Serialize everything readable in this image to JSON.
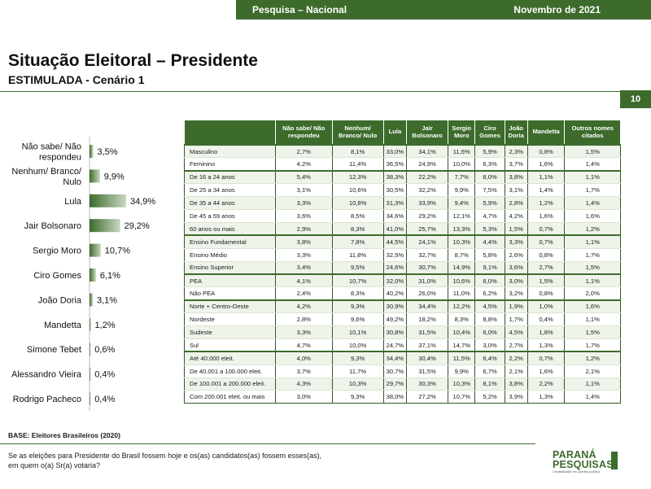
{
  "header": {
    "left": "Pesquisa – Nacional",
    "right": "Novembro de 2021"
  },
  "title": "Situação Eleitoral – Presidente",
  "subtitle": "ESTIMULADA - Cenário 1",
  "page_number": "10",
  "base": "BASE: Eleitores Brasileiros  (2020)",
  "question_line1": "Se as eleições para Presidente do Brasil fossem hoje e os(as) candidatos(as) fossem esses(as),",
  "question_line2": "em quem o(a) Sr(a) votaria?",
  "logo": {
    "line1": "PARANÁ",
    "line2": "PESQUISAS",
    "tagline": "Credibilidade em opinião pública"
  },
  "colors": {
    "brand_green": "#3d6b2c",
    "row_alt": "#eef4ea"
  },
  "chart_data": {
    "type": "bar",
    "orientation": "horizontal",
    "categories": [
      "Não sabe/ Não respondeu",
      "Nenhum/ Branco/ Nulo",
      "Lula",
      "Jair Bolsonaro",
      "Sergio Moro",
      "Ciro Gomes",
      "João Doria",
      "Mandetta",
      "Simone Tebet",
      "Alessandro Vieira",
      "Rodrigo Pacheco"
    ],
    "category_lines": [
      [
        "Não sabe/ Não",
        "respondeu"
      ],
      [
        "Nenhum/ Branco/",
        "Nulo"
      ],
      [
        "Lula"
      ],
      [
        "Jair Bolsonaro"
      ],
      [
        "Sergio Moro"
      ],
      [
        "Ciro Gomes"
      ],
      [
        "João Doria"
      ],
      [
        "Mandetta"
      ],
      [
        "Simone Tebet"
      ],
      [
        "Alessandro Vieira"
      ],
      [
        "Rodrigo Pacheco"
      ]
    ],
    "values": [
      3.5,
      9.9,
      34.9,
      29.2,
      10.7,
      6.1,
      3.1,
      1.2,
      0.6,
      0.4,
      0.4
    ],
    "labels": [
      "3,5%",
      "9,9%",
      "34,9%",
      "29,2%",
      "10,7%",
      "6,1%",
      "3,1%",
      "1,2%",
      "0,6%",
      "0,4%",
      "0,4%"
    ],
    "xlim": [
      0,
      34.9
    ],
    "grid": false,
    "legend": "none"
  },
  "table": {
    "columns": [
      "Não sabe/ Não respondeu",
      "Nenhum/ Branco/ Nulo",
      "Lula",
      "Jair Bolsonaro",
      "Sergio Moro",
      "Ciro Gomes",
      "João Doria",
      "Mandetta",
      "Outros nomes citados"
    ],
    "column_lines": [
      [
        "Não sabe/ Não",
        "respondeu"
      ],
      [
        "Nenhum/",
        "Branco/ Nulo"
      ],
      [
        "Lula"
      ],
      [
        "Jair",
        "Bolsonaro"
      ],
      [
        "Sergio",
        "Moro"
      ],
      [
        "Ciro",
        "Gomes"
      ],
      [
        "João",
        "Doria"
      ],
      [
        "Mandetta"
      ],
      [
        "Outros nomes",
        "citados"
      ]
    ],
    "groups": [
      [
        {
          "label": "Masculino",
          "values": [
            "2,7%",
            "8,1%",
            "33,0%",
            "34,1%",
            "11,6%",
            "5,9%",
            "2,3%",
            "0,8%",
            "1,5%"
          ]
        },
        {
          "label": "Feminino",
          "values": [
            "4,2%",
            "11,4%",
            "36,5%",
            "24,9%",
            "10,0%",
            "6,3%",
            "3,7%",
            "1,6%",
            "1,4%"
          ]
        }
      ],
      [
        {
          "label": "De 16 a 24 anos",
          "values": [
            "5,4%",
            "12,3%",
            "38,3%",
            "22,2%",
            "7,7%",
            "8,0%",
            "3,8%",
            "1,1%",
            "1,1%"
          ]
        },
        {
          "label": "De 25 a 34 anos",
          "values": [
            "3,1%",
            "10,6%",
            "30,5%",
            "32,2%",
            "9,9%",
            "7,5%",
            "3,1%",
            "1,4%",
            "1,7%"
          ]
        },
        {
          "label": "De 35 a 44 anos",
          "values": [
            "3,3%",
            "10,8%",
            "31,3%",
            "33,9%",
            "9,4%",
            "5,9%",
            "2,8%",
            "1,2%",
            "1,4%"
          ]
        },
        {
          "label": "De 45 a 59 anos",
          "values": [
            "3,6%",
            "8,5%",
            "34,6%",
            "29,2%",
            "12,1%",
            "4,7%",
            "4,2%",
            "1,6%",
            "1,6%"
          ]
        },
        {
          "label": "60 anos ou mais",
          "values": [
            "2,9%",
            "8,3%",
            "41,0%",
            "25,7%",
            "13,3%",
            "5,3%",
            "1,5%",
            "0,7%",
            "1,2%"
          ]
        }
      ],
      [
        {
          "label": "Ensino Fundamental",
          "values": [
            "3,8%",
            "7,8%",
            "44,5%",
            "24,1%",
            "10,3%",
            "4,4%",
            "3,3%",
            "0,7%",
            "1,1%"
          ]
        },
        {
          "label": "Ensino Médio",
          "values": [
            "3,3%",
            "11,8%",
            "32,5%",
            "32,7%",
            "8,7%",
            "5,8%",
            "2,6%",
            "0,8%",
            "1,7%"
          ]
        },
        {
          "label": "Ensino Superior",
          "values": [
            "3,4%",
            "9,5%",
            "24,6%",
            "30,7%",
            "14,9%",
            "9,1%",
            "3,6%",
            "2,7%",
            "1,5%"
          ]
        }
      ],
      [
        {
          "label": "PEA",
          "values": [
            "4,1%",
            "10,7%",
            "32,0%",
            "31,0%",
            "10,6%",
            "6,0%",
            "3,0%",
            "1,5%",
            "1,1%"
          ]
        },
        {
          "label": "Não PEA",
          "values": [
            "2,4%",
            "8,3%",
            "40,2%",
            "26,0%",
            "11,0%",
            "6,2%",
            "3,2%",
            "0,8%",
            "2,0%"
          ]
        }
      ],
      [
        {
          "label": "Norte + Centro-Oeste",
          "values": [
            "4,2%",
            "9,3%",
            "30,9%",
            "34,4%",
            "12,2%",
            "4,5%",
            "1,9%",
            "1,0%",
            "1,6%"
          ]
        },
        {
          "label": "Nordeste",
          "values": [
            "2,8%",
            "9,6%",
            "49,2%",
            "18,2%",
            "8,3%",
            "8,8%",
            "1,7%",
            "0,4%",
            "1,1%"
          ]
        },
        {
          "label": "Sudeste",
          "values": [
            "3,3%",
            "10,1%",
            "30,8%",
            "31,5%",
            "10,4%",
            "6,0%",
            "4,5%",
            "1,8%",
            "1,5%"
          ]
        },
        {
          "label": "Sul",
          "values": [
            "4,7%",
            "10,0%",
            "24,7%",
            "37,1%",
            "14,7%",
            "3,0%",
            "2,7%",
            "1,3%",
            "1,7%"
          ]
        }
      ],
      [
        {
          "label": "Até 40.000 eleit.",
          "values": [
            "4,0%",
            "9,3%",
            "34,4%",
            "30,4%",
            "11,5%",
            "6,4%",
            "2,2%",
            "0,7%",
            "1,2%"
          ]
        },
        {
          "label": "De 40.001 a 100.000 eleit.",
          "values": [
            "3,7%",
            "11,7%",
            "30,7%",
            "31,5%",
            "9,9%",
            "6,7%",
            "2,1%",
            "1,6%",
            "2,1%"
          ]
        },
        {
          "label": "De 100.001 a 200.000 eleit.",
          "values": [
            "4,3%",
            "10,3%",
            "29,7%",
            "30,3%",
            "10,3%",
            "8,1%",
            "3,8%",
            "2,2%",
            "1,1%"
          ]
        },
        {
          "label": "Com 200.001 eleit. ou mais",
          "values": [
            "3,0%",
            "9,3%",
            "38,0%",
            "27,2%",
            "10,7%",
            "5,2%",
            "3,9%",
            "1,3%",
            "1,4%"
          ]
        }
      ]
    ]
  }
}
